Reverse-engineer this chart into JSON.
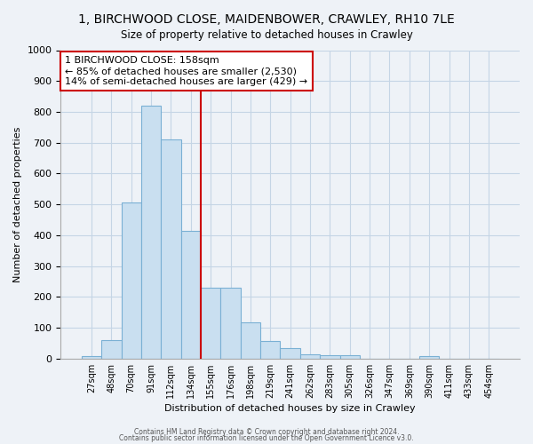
{
  "title": "1, BIRCHWOOD CLOSE, MAIDENBOWER, CRAWLEY, RH10 7LE",
  "subtitle": "Size of property relative to detached houses in Crawley",
  "xlabel": "Distribution of detached houses by size in Crawley",
  "ylabel": "Number of detached properties",
  "bar_labels": [
    "27sqm",
    "48sqm",
    "70sqm",
    "91sqm",
    "112sqm",
    "134sqm",
    "155sqm",
    "176sqm",
    "198sqm",
    "219sqm",
    "241sqm",
    "262sqm",
    "283sqm",
    "305sqm",
    "326sqm",
    "347sqm",
    "369sqm",
    "390sqm",
    "411sqm",
    "433sqm",
    "454sqm"
  ],
  "bar_values": [
    8,
    60,
    505,
    820,
    710,
    415,
    230,
    230,
    118,
    58,
    33,
    13,
    11,
    11,
    0,
    0,
    0,
    7,
    0,
    0,
    0
  ],
  "bar_color": "#c9dff0",
  "bar_edge_color": "#7ab0d4",
  "vline_color": "#cc0000",
  "annotation_title": "1 BIRCHWOOD CLOSE: 158sqm",
  "annotation_line1": "← 85% of detached houses are smaller (2,530)",
  "annotation_line2": "14% of semi-detached houses are larger (429) →",
  "annotation_box_color": "#cc0000",
  "ylim": [
    0,
    1000
  ],
  "yticks": [
    0,
    100,
    200,
    300,
    400,
    500,
    600,
    700,
    800,
    900,
    1000
  ],
  "footer1": "Contains HM Land Registry data © Crown copyright and database right 2024.",
  "footer2": "Contains public sector information licensed under the Open Government Licence v3.0.",
  "bg_color": "#eef2f7",
  "grid_color": "#c5d5e5"
}
